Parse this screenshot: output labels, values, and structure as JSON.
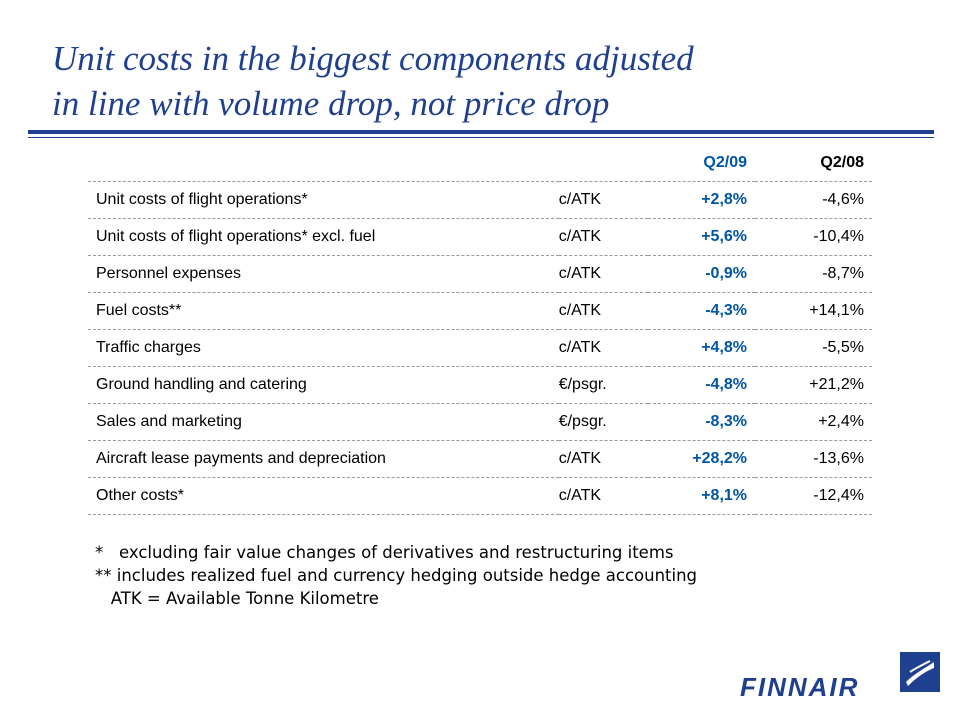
{
  "slide": {
    "title_line1": "Unit costs in the biggest components adjusted",
    "title_line2": "in line with volume drop, not price drop"
  },
  "table": {
    "headers": {
      "label": "",
      "unit": "",
      "q09": "Q2/09",
      "q08": "Q2/08"
    },
    "rows": [
      {
        "label": "Unit costs of flight operations*",
        "unit": "c/ATK",
        "q09": "+2,8%",
        "q08": "-4,6%"
      },
      {
        "label": "Unit costs of flight operations* excl. fuel",
        "unit": "c/ATK",
        "q09": "+5,6%",
        "q08": "-10,4%"
      },
      {
        "label": "Personnel expenses",
        "unit": "c/ATK",
        "q09": "-0,9%",
        "q08": "-8,7%"
      },
      {
        "label": "Fuel costs**",
        "unit": "c/ATK",
        "q09": "-4,3%",
        "q08": "+14,1%"
      },
      {
        "label": "Traffic charges",
        "unit": "c/ATK",
        "q09": "+4,8%",
        "q08": "-5,5%"
      },
      {
        "label": "Ground handling and catering",
        "unit": "€/psgr.",
        "q09": "-4,8%",
        "q08": "+21,2%"
      },
      {
        "label": "Sales and marketing",
        "unit": "€/psgr.",
        "q09": "-8,3%",
        "q08": "+2,4%"
      },
      {
        "label": "Aircraft lease payments and depreciation",
        "unit": "c/ATK",
        "q09": "+28,2%",
        "q08": "-13,6%"
      },
      {
        "label": "Other costs*",
        "unit": "c/ATK",
        "q09": "+8,1%",
        "q08": "-12,4%"
      }
    ]
  },
  "footnotes": {
    "note1": "*   excluding fair value changes of derivatives and restructuring items",
    "note2": "** includes realized fuel and currency hedging outside hedge accounting",
    "note3": "   ATK = Available Tonne Kilometre"
  },
  "logo": {
    "text": "FINNAIR",
    "icon": "finnair-f-logo-icon"
  },
  "colors": {
    "title": "#1f3f8f",
    "accent": "#0055a5"
  }
}
